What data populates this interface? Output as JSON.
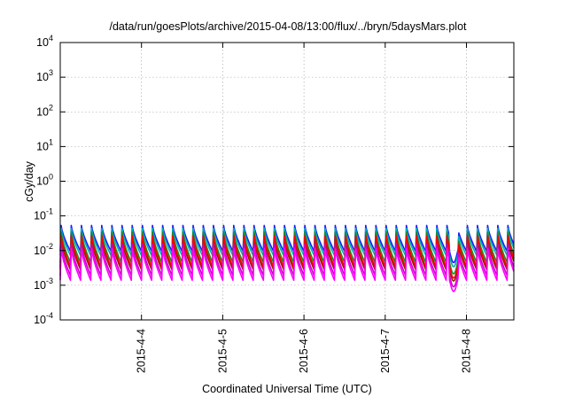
{
  "chart_data": {
    "type": "line",
    "title": "/data/run/goesPlots/archive/2015-04-08/13:00/flux/../bryn/5daysMars.plot",
    "xlabel": "Coordinated Universal Time (UTC)",
    "ylabel": "cGy/day",
    "y_scale": "log",
    "ylim": [
      0.0001,
      10000
    ],
    "xlim": [
      "2015-04-03T00:00",
      "2015-04-08T14:00"
    ],
    "grid": true,
    "legend": "none",
    "y_ticks": [
      {
        "base": "10",
        "exp": "-4",
        "value": 0.0001
      },
      {
        "base": "10",
        "exp": "-3",
        "value": 0.001
      },
      {
        "base": "10",
        "exp": "-2",
        "value": 0.01
      },
      {
        "base": "10",
        "exp": "-1",
        "value": 0.1
      },
      {
        "base": "10",
        "exp": "0",
        "value": 1
      },
      {
        "base": "10",
        "exp": "1",
        "value": 10
      },
      {
        "base": "10",
        "exp": "2",
        "value": 100
      },
      {
        "base": "10",
        "exp": "3",
        "value": 1000
      },
      {
        "base": "10",
        "exp": "4",
        "value": 10000
      }
    ],
    "x_ticks": [
      {
        "label": "2015-4-4",
        "value": "2015-04-04T00:00"
      },
      {
        "label": "2015-4-5",
        "value": "2015-04-05T00:00"
      },
      {
        "label": "2015-4-6",
        "value": "2015-04-06T00:00"
      },
      {
        "label": "2015-4-7",
        "value": "2015-04-07T00:00"
      },
      {
        "label": "2015-4-8",
        "value": "2015-04-08T00:00"
      }
    ],
    "sawtooth_period_hours": 3,
    "dropout": {
      "start": "2015-04-07T19:00",
      "end": "2015-04-07T21:30"
    },
    "series": [
      {
        "color": "#1a1aff",
        "peak": 0.055,
        "trough": 0.0095
      },
      {
        "color": "#00b0b0",
        "peak": 0.045,
        "trough": 0.0072
      },
      {
        "color": "#1f8a1f",
        "peak": 0.035,
        "trough": 0.0045
      },
      {
        "color": "#8b2500",
        "peak": 0.022,
        "trough": 0.0028
      },
      {
        "color": "#ff0000",
        "peak": 0.028,
        "trough": 0.0034
      },
      {
        "color": "#cc00cc",
        "peak": 0.016,
        "trough": 0.0019
      },
      {
        "color": "#ff00ff",
        "peak": 0.012,
        "trough": 0.0014
      }
    ]
  }
}
